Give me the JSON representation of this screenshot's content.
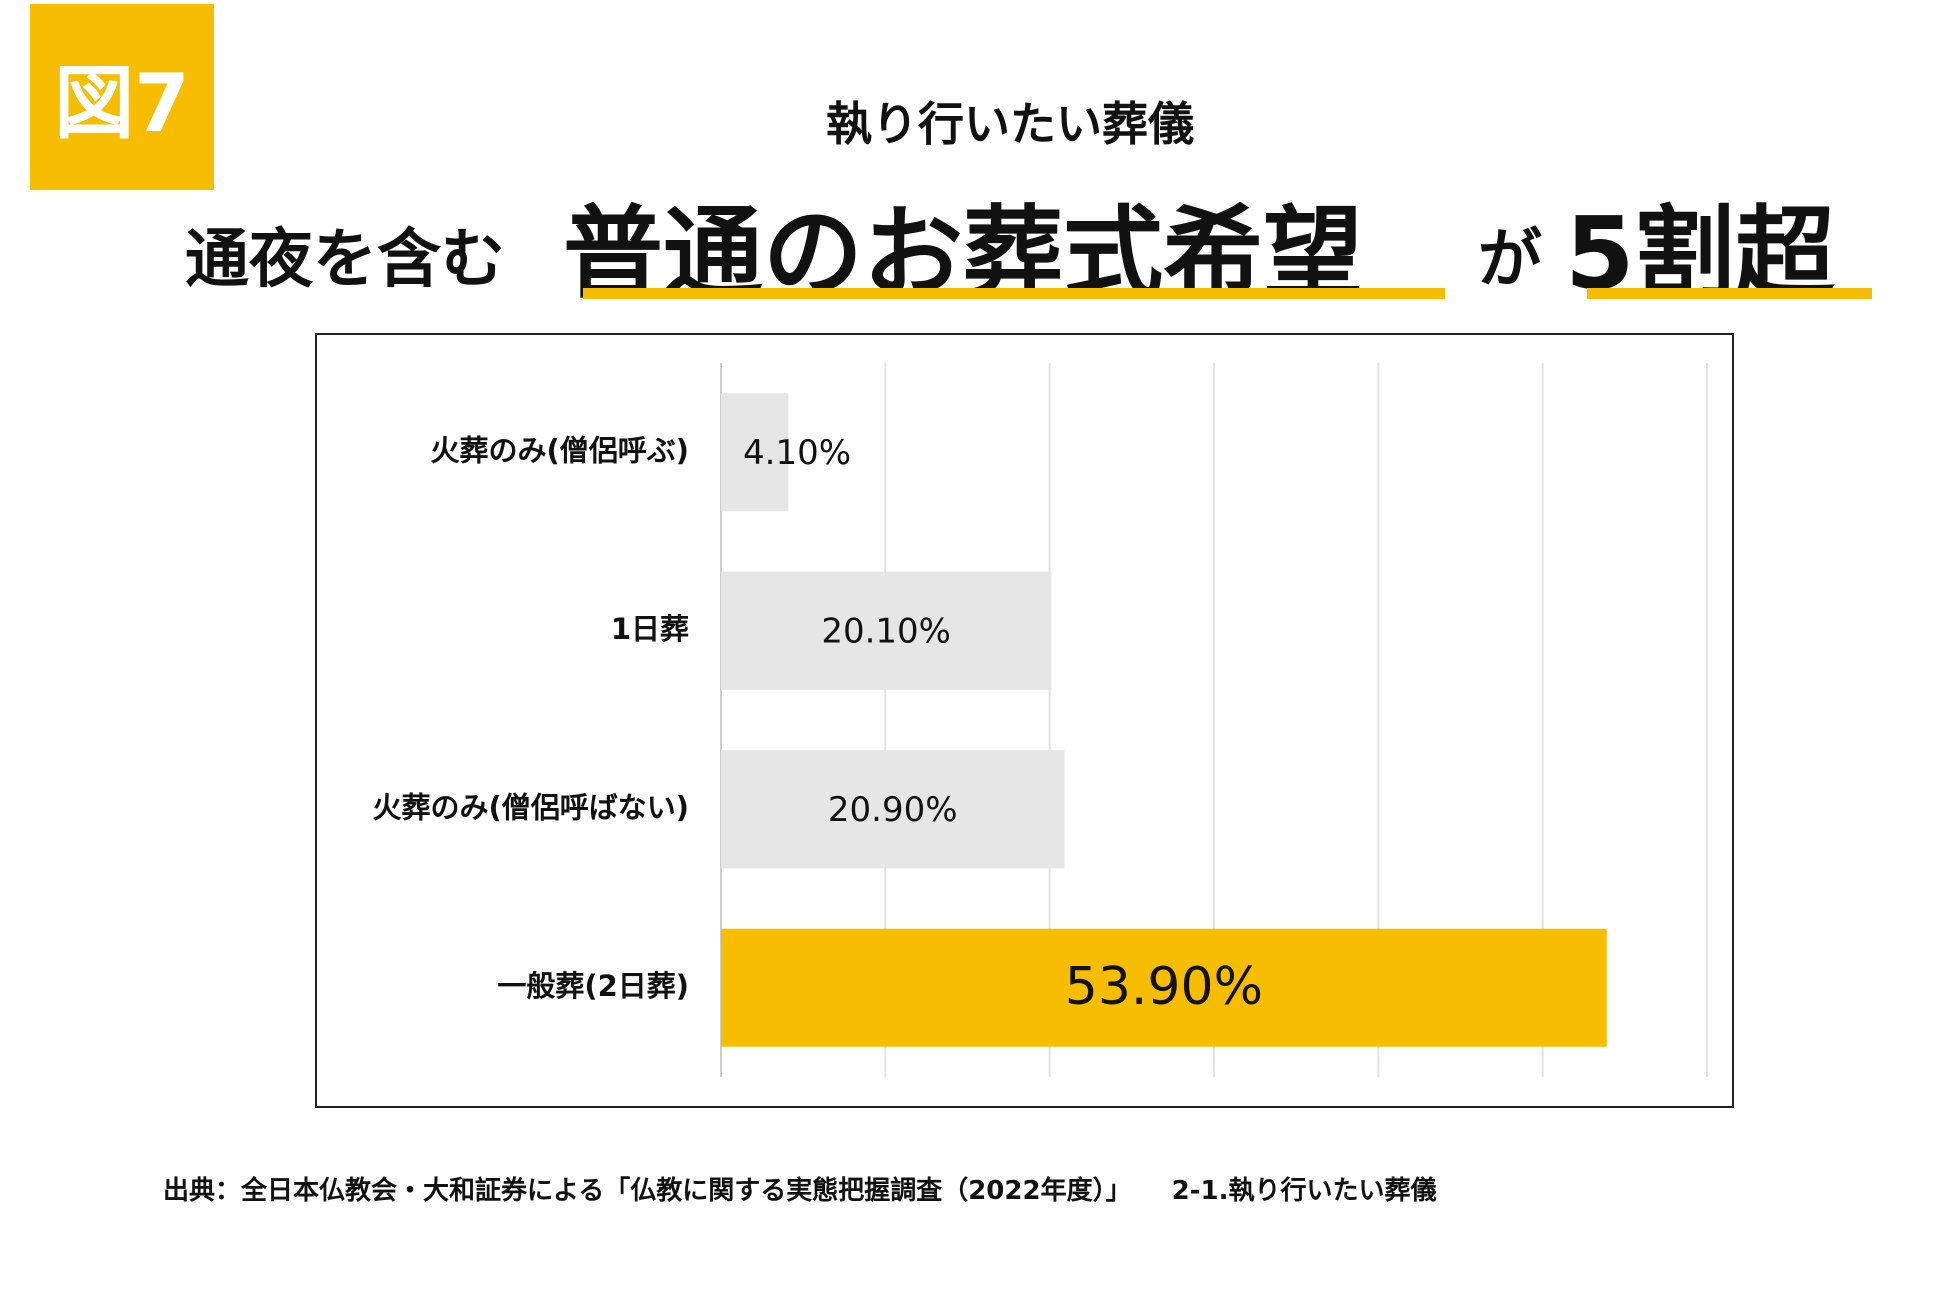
{
  "figure_badge": "図7",
  "subtitle": "執り行いたい葬儀",
  "headline": {
    "part1": "通夜を含む",
    "part2": "普通のお葬式希望",
    "part3": "が",
    "part4": "5割超"
  },
  "colors": {
    "accent": "#f7bd00",
    "bar": "#e6e6e6",
    "grid": "#e2e2e2",
    "axis": "#cccccc"
  },
  "chart_data": {
    "type": "bar",
    "orientation": "horizontal",
    "title": "執り行いたい葬儀",
    "xlim": [
      0,
      60
    ],
    "grid": true,
    "categories": [
      "火葬のみ(僧侶呼ぶ)",
      "1日葬",
      "火葬のみ(僧侶呼ばない)",
      "一般葬(2日葬)"
    ],
    "values": [
      4.1,
      20.1,
      20.9,
      53.9
    ],
    "data_labels": [
      "4.10%",
      "20.10%",
      "20.90%",
      "53.90%"
    ],
    "highlight_index": 3
  },
  "source": {
    "text": "出典：全日本仏教会・大和証券による「仏教に関する実態把握調査（2022年度）」",
    "section": "2-1.執り行いたい葬儀"
  }
}
